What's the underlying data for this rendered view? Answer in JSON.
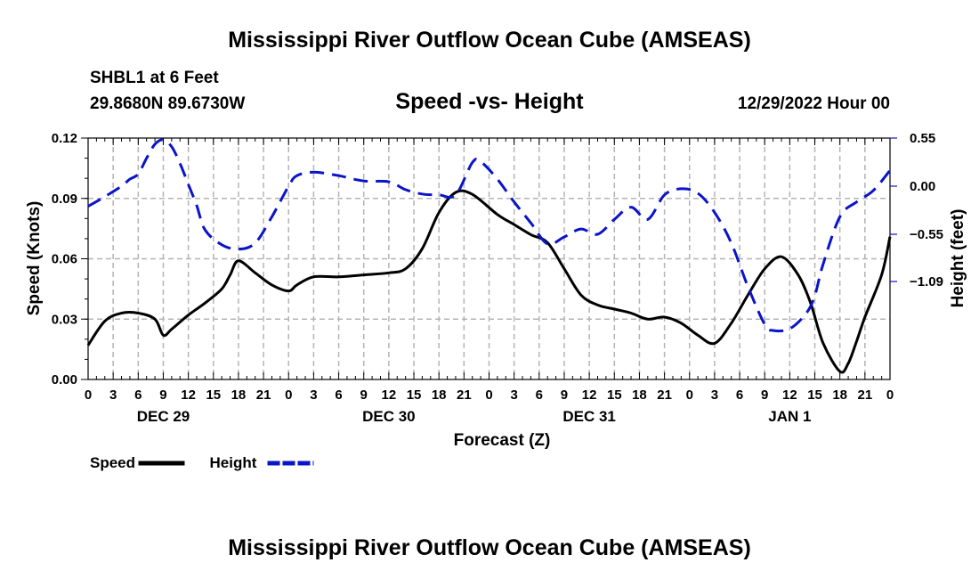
{
  "page": {
    "title": "Mississippi River Outflow Ocean Cube (AMSEAS)",
    "station": "SHBL1 at 6 Feet",
    "coords": "29.8680N  89.6730W",
    "subtitle": "Speed -vs- Height",
    "datetime": "12/29/2022 Hour 00",
    "bottom_title": "Mississippi River Outflow Ocean Cube (AMSEAS)"
  },
  "chart_data": {
    "type": "line",
    "title": "Speed -vs- Height",
    "xlabel": "Forecast (Z)",
    "ylabel": "Speed (Knots)",
    "y2label": "Height (feet)",
    "ylim": [
      0,
      0.12
    ],
    "y2lim": [
      -2.21,
      0.55
    ],
    "x_hours_range": [
      0,
      96
    ],
    "x_tick_step_hours": 3,
    "x_tick_labels": [
      "0",
      "3",
      "6",
      "9",
      "12",
      "15",
      "18",
      "21",
      "0",
      "3",
      "6",
      "9",
      "12",
      "15",
      "18",
      "21",
      "0",
      "3",
      "6",
      "9",
      "12",
      "15",
      "18",
      "21",
      "0",
      "3",
      "6",
      "9",
      "12",
      "15",
      "18",
      "21",
      "0"
    ],
    "day_labels": [
      {
        "label": "DEC 29",
        "hour": 9
      },
      {
        "label": "DEC 30",
        "hour": 36
      },
      {
        "label": "DEC 31",
        "hour": 60
      },
      {
        "label": "JAN 1",
        "hour": 84
      }
    ],
    "y_ticks": [
      0.0,
      0.03,
      0.06,
      0.09,
      0.12
    ],
    "y_tick_labels": [
      "0.00",
      "0.03",
      "0.06",
      "0.09",
      "0.12"
    ],
    "y2_ticks": [
      0.55,
      0.0,
      -0.55,
      -1.09
    ],
    "y2_tick_labels": [
      "0.55",
      "0.00",
      "−0.55",
      "−1.09"
    ],
    "grid": true,
    "legend_position": "bottom-left",
    "series": [
      {
        "name": "Speed",
        "axis": "left",
        "color": "#000000",
        "dash": "solid",
        "x": [
          0,
          2,
          4,
          6,
          8,
          9,
          10,
          12,
          14,
          16,
          17,
          18,
          20,
          22,
          24,
          25,
          27,
          30,
          33,
          36,
          38,
          40,
          42,
          44,
          46,
          49,
          51,
          53,
          55,
          57,
          59,
          61,
          63,
          65,
          67,
          69,
          71,
          73,
          75,
          77,
          79,
          81,
          83,
          85,
          86.5,
          88,
          90,
          91,
          92,
          93,
          95,
          96
        ],
        "values": [
          0.017,
          0.029,
          0.033,
          0.033,
          0.03,
          0.022,
          0.025,
          0.032,
          0.038,
          0.045,
          0.052,
          0.059,
          0.053,
          0.047,
          0.044,
          0.047,
          0.051,
          0.051,
          0.052,
          0.053,
          0.055,
          0.065,
          0.083,
          0.093,
          0.092,
          0.082,
          0.077,
          0.072,
          0.068,
          0.055,
          0.042,
          0.037,
          0.035,
          0.033,
          0.03,
          0.031,
          0.028,
          0.022,
          0.018,
          0.028,
          0.042,
          0.055,
          0.061,
          0.052,
          0.038,
          0.018,
          0.004,
          0.008,
          0.019,
          0.031,
          0.052,
          0.071
        ]
      },
      {
        "name": "Height",
        "axis": "right",
        "color": "#0a14c8",
        "dash": "dashed",
        "x": [
          0,
          2,
          4,
          5,
          6,
          7,
          8,
          9,
          10,
          11,
          12,
          13,
          14,
          16,
          18,
          20,
          22,
          24,
          25,
          27,
          30,
          33,
          36,
          38,
          40,
          42,
          44,
          46,
          47,
          49,
          51,
          53,
          55,
          57,
          59,
          61,
          63,
          65,
          67,
          69,
          71,
          73,
          75,
          77,
          79,
          81,
          82,
          84,
          86,
          87,
          88,
          90,
          92,
          94,
          96
        ],
        "values": [
          -0.23,
          -0.12,
          0.0,
          0.08,
          0.14,
          0.32,
          0.48,
          0.53,
          0.45,
          0.26,
          0.02,
          -0.22,
          -0.5,
          -0.67,
          -0.72,
          -0.65,
          -0.35,
          0.0,
          0.12,
          0.16,
          0.12,
          0.06,
          0.05,
          -0.04,
          -0.09,
          -0.1,
          -0.1,
          0.27,
          0.28,
          0.08,
          -0.18,
          -0.42,
          -0.66,
          -0.58,
          -0.49,
          -0.55,
          -0.38,
          -0.24,
          -0.38,
          -0.1,
          -0.03,
          -0.08,
          -0.3,
          -0.65,
          -1.15,
          -1.58,
          -1.65,
          -1.63,
          -1.45,
          -1.25,
          -0.89,
          -0.35,
          -0.18,
          -0.05,
          0.18
        ]
      }
    ]
  },
  "legend": {
    "items": [
      {
        "label": "Speed",
        "color": "#000000"
      },
      {
        "label": "Height",
        "color": "#0a14c8"
      }
    ]
  }
}
